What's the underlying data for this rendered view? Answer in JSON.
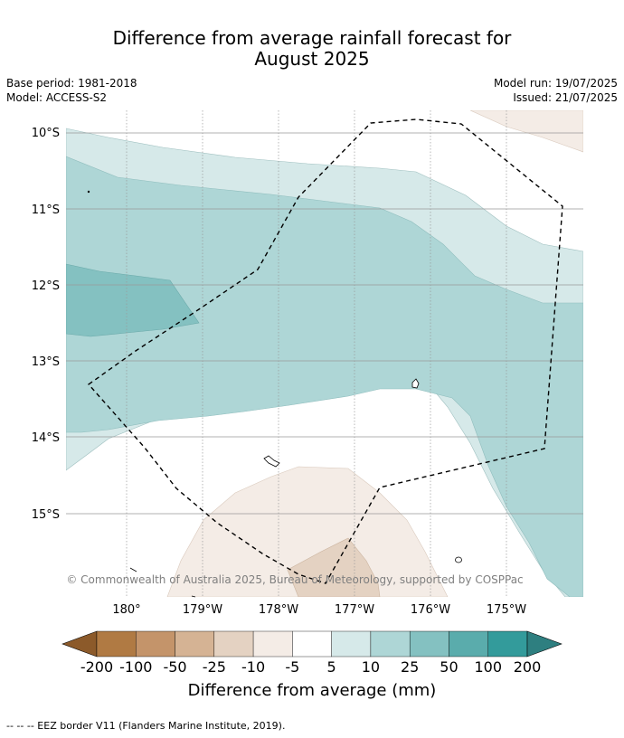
{
  "header": {
    "title_line1": "Difference from average rainfall forecast for",
    "title_line2": "August 2025",
    "base_period": "Base period: 1981-2018",
    "model": "Model: ACCESS-S2",
    "model_run": "Model run: 19/07/2025",
    "issued": "Issued: 21/07/2025"
  },
  "map": {
    "lat_labels": [
      "10°S",
      "11°S",
      "12°S",
      "13°S",
      "14°S",
      "15°S"
    ],
    "lon_labels": [
      "180°",
      "179°W",
      "178°W",
      "177°W",
      "176°W",
      "175°W"
    ],
    "copyright": "© Commonwealth of Australia 2025, Bureau of Meteorology, supported by COSPPac",
    "eez_line_style": "dashed"
  },
  "colorbar": {
    "labels": [
      "-200",
      "-100",
      "-50",
      "-25",
      "-10",
      "-5",
      "5",
      "10",
      "25",
      "50",
      "100",
      "200"
    ],
    "colors": [
      "#8c5a2a",
      "#b07a43",
      "#c4946a",
      "#d5b394",
      "#e4d2c2",
      "#f4ece6",
      "#ffffff",
      "#d6e9e9",
      "#aed6d6",
      "#84c1c1",
      "#5aacac",
      "#339b9b",
      "#2e7f80"
    ],
    "title": "Difference from average (mm)"
  },
  "footer": {
    "note": "--  --  -- EEZ border V11 (Flanders Marine Institute, 2019)."
  }
}
